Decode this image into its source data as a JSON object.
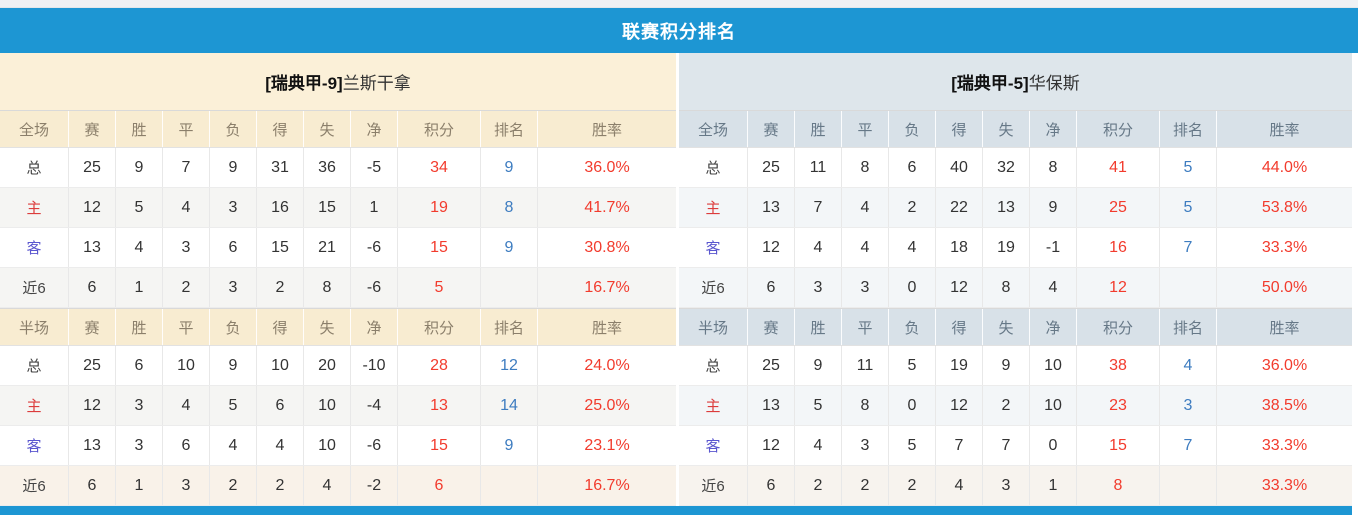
{
  "title": "联赛积分排名",
  "colors": {
    "accent_blue": "#1d96d3",
    "stat_red": "#f23b2d",
    "rank_blue": "#3d7cc0",
    "home_label_red": "#dc3c3c",
    "away_label_blue": "#5a56cf",
    "left_theme_cream": "#f8ecd1",
    "right_theme_blue": "#d8e1e8"
  },
  "columns": [
    "赛",
    "胜",
    "平",
    "负",
    "得",
    "失",
    "净",
    "积分",
    "排名",
    "胜率"
  ],
  "panels": [
    {
      "team": {
        "league_tag": "[瑞典甲-9]",
        "name": "兰斯干拿"
      },
      "tables": [
        {
          "scope_label": "全场",
          "rows": [
            {
              "label": "总",
              "type": "total",
              "values": [
                "25",
                "9",
                "7",
                "9",
                "31",
                "36",
                "-5",
                "34",
                "9",
                "36.0%"
              ]
            },
            {
              "label": "主",
              "type": "home",
              "values": [
                "12",
                "5",
                "4",
                "3",
                "16",
                "15",
                "1",
                "19",
                "8",
                "41.7%"
              ]
            },
            {
              "label": "客",
              "type": "away",
              "values": [
                "13",
                "4",
                "3",
                "6",
                "15",
                "21",
                "-6",
                "15",
                "9",
                "30.8%"
              ]
            },
            {
              "label": "近6",
              "type": "recent",
              "values": [
                "6",
                "1",
                "2",
                "3",
                "2",
                "8",
                "-6",
                "5",
                "",
                "16.7%"
              ]
            }
          ]
        },
        {
          "scope_label": "半场",
          "rows": [
            {
              "label": "总",
              "type": "total",
              "values": [
                "25",
                "6",
                "10",
                "9",
                "10",
                "20",
                "-10",
                "28",
                "12",
                "24.0%"
              ]
            },
            {
              "label": "主",
              "type": "home",
              "values": [
                "12",
                "3",
                "4",
                "5",
                "6",
                "10",
                "-4",
                "13",
                "14",
                "25.0%"
              ]
            },
            {
              "label": "客",
              "type": "away",
              "values": [
                "13",
                "3",
                "6",
                "4",
                "4",
                "10",
                "-6",
                "15",
                "9",
                "23.1%"
              ]
            },
            {
              "label": "近6",
              "type": "recent",
              "values": [
                "6",
                "1",
                "3",
                "2",
                "2",
                "4",
                "-2",
                "6",
                "",
                "16.7%"
              ]
            }
          ]
        }
      ]
    },
    {
      "team": {
        "league_tag": "[瑞典甲-5]",
        "name": "华保斯"
      },
      "tables": [
        {
          "scope_label": "全场",
          "rows": [
            {
              "label": "总",
              "type": "total",
              "values": [
                "25",
                "11",
                "8",
                "6",
                "40",
                "32",
                "8",
                "41",
                "5",
                "44.0%"
              ]
            },
            {
              "label": "主",
              "type": "home",
              "values": [
                "13",
                "7",
                "4",
                "2",
                "22",
                "13",
                "9",
                "25",
                "5",
                "53.8%"
              ]
            },
            {
              "label": "客",
              "type": "away",
              "values": [
                "12",
                "4",
                "4",
                "4",
                "18",
                "19",
                "-1",
                "16",
                "7",
                "33.3%"
              ]
            },
            {
              "label": "近6",
              "type": "recent",
              "values": [
                "6",
                "3",
                "3",
                "0",
                "12",
                "8",
                "4",
                "12",
                "",
                "50.0%"
              ]
            }
          ]
        },
        {
          "scope_label": "半场",
          "rows": [
            {
              "label": "总",
              "type": "total",
              "values": [
                "25",
                "9",
                "11",
                "5",
                "19",
                "9",
                "10",
                "38",
                "4",
                "36.0%"
              ]
            },
            {
              "label": "主",
              "type": "home",
              "values": [
                "13",
                "5",
                "8",
                "0",
                "12",
                "2",
                "10",
                "23",
                "3",
                "38.5%"
              ]
            },
            {
              "label": "客",
              "type": "away",
              "values": [
                "12",
                "4",
                "3",
                "5",
                "7",
                "7",
                "0",
                "15",
                "7",
                "33.3%"
              ]
            },
            {
              "label": "近6",
              "type": "recent",
              "values": [
                "6",
                "2",
                "2",
                "2",
                "4",
                "3",
                "1",
                "8",
                "",
                "33.3%"
              ]
            }
          ]
        }
      ]
    }
  ]
}
